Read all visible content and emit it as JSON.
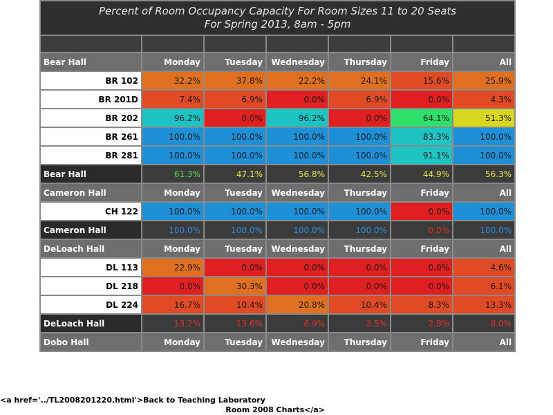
{
  "title": {
    "line1": "Percent of Room Occupancy Capacity For Room Sizes 11 to 20 Seats",
    "line2": "For Spring 2013, 8am - 5pm"
  },
  "days": [
    "Monday",
    "Tuesday",
    "Wednesday",
    "Thursday",
    "Friday",
    "All"
  ],
  "colors": {
    "blue": "#1e90d8",
    "teal": "#1ec4c4",
    "green": "#30e06a",
    "yellow": "#d8d820",
    "orange": "#e07020",
    "red_orange": "#e04a24",
    "red": "#e02020",
    "total_green": "#4ddc4d",
    "total_yellow": "#e6e640",
    "total_blue": "#2a8de0",
    "total_red": "#e03020"
  },
  "halls": [
    {
      "name": "Bear Hall",
      "rooms": [
        {
          "name": "BR 102",
          "values": [
            "32.2%",
            "37.8%",
            "22.2%",
            "24.1%",
            "15.6%",
            "25.9%"
          ],
          "colors": [
            "orange",
            "orange",
            "orange",
            "orange",
            "red_orange",
            "orange"
          ]
        },
        {
          "name": "BR 201D",
          "values": [
            "7.4%",
            "6.9%",
            "0.0%",
            "6.9%",
            "0.0%",
            "4.3%"
          ],
          "colors": [
            "red_orange",
            "red_orange",
            "red",
            "red_orange",
            "red",
            "red_orange"
          ]
        },
        {
          "name": "BR 202",
          "values": [
            "96.2%",
            "0.0%",
            "96.2%",
            "0.0%",
            "64.1%",
            "51.3%"
          ],
          "colors": [
            "teal",
            "red",
            "teal",
            "red",
            "green",
            "yellow"
          ]
        },
        {
          "name": "BR 261",
          "values": [
            "100.0%",
            "100.0%",
            "100.0%",
            "100.0%",
            "83.3%",
            "100.0%"
          ],
          "colors": [
            "blue",
            "blue",
            "blue",
            "blue",
            "teal",
            "blue"
          ]
        },
        {
          "name": "BR 281",
          "values": [
            "100.0%",
            "100.0%",
            "100.0%",
            "100.0%",
            "91.1%",
            "100.0%"
          ],
          "colors": [
            "blue",
            "blue",
            "blue",
            "blue",
            "teal",
            "blue"
          ]
        }
      ],
      "total": {
        "values": [
          "61.3%",
          "47.1%",
          "56.8%",
          "42.5%",
          "44.9%",
          "56.3%"
        ],
        "colors": [
          "total_green",
          "total_yellow",
          "total_yellow",
          "total_yellow",
          "total_yellow",
          "total_yellow"
        ]
      }
    },
    {
      "name": "Cameron Hall",
      "rooms": [
        {
          "name": "CH 122",
          "values": [
            "100.0%",
            "100.0%",
            "100.0%",
            "100.0%",
            "0.0%",
            "100.0%"
          ],
          "colors": [
            "blue",
            "blue",
            "blue",
            "blue",
            "red",
            "blue"
          ]
        }
      ],
      "total": {
        "values": [
          "100.0%",
          "100.0%",
          "100.0%",
          "100.0%",
          "0.0%",
          "100.0%"
        ],
        "colors": [
          "total_blue",
          "total_blue",
          "total_blue",
          "total_blue",
          "total_red",
          "total_blue"
        ]
      }
    },
    {
      "name": "DeLoach Hall",
      "rooms": [
        {
          "name": "DL 113",
          "values": [
            "22.9%",
            "0.0%",
            "0.0%",
            "0.0%",
            "0.0%",
            "4.6%"
          ],
          "colors": [
            "orange",
            "red",
            "red",
            "red",
            "red",
            "red_orange"
          ]
        },
        {
          "name": "DL 218",
          "values": [
            "0.0%",
            "30.3%",
            "0.0%",
            "0.0%",
            "0.0%",
            "6.1%"
          ],
          "colors": [
            "red",
            "orange",
            "red",
            "red",
            "red",
            "red_orange"
          ]
        },
        {
          "name": "DL 224",
          "values": [
            "16.7%",
            "10.4%",
            "20.8%",
            "10.4%",
            "8.3%",
            "13.3%"
          ],
          "colors": [
            "red_orange",
            "red_orange",
            "orange",
            "red_orange",
            "red_orange",
            "red_orange"
          ]
        }
      ],
      "total": {
        "values": [
          "13.2%",
          "13.6%",
          "6.9%",
          "3.5%",
          "2.8%",
          "8.0%"
        ],
        "colors": [
          "total_red",
          "total_red",
          "total_red",
          "total_red",
          "total_red",
          "total_red"
        ]
      }
    },
    {
      "name": "Dobo Hall",
      "rooms": [],
      "total": null
    }
  ],
  "footer": {
    "line1": "<a href='../TL2008201220.html'>Back to Teaching Laboratory",
    "line2": "Room 2008 Charts</a>"
  }
}
